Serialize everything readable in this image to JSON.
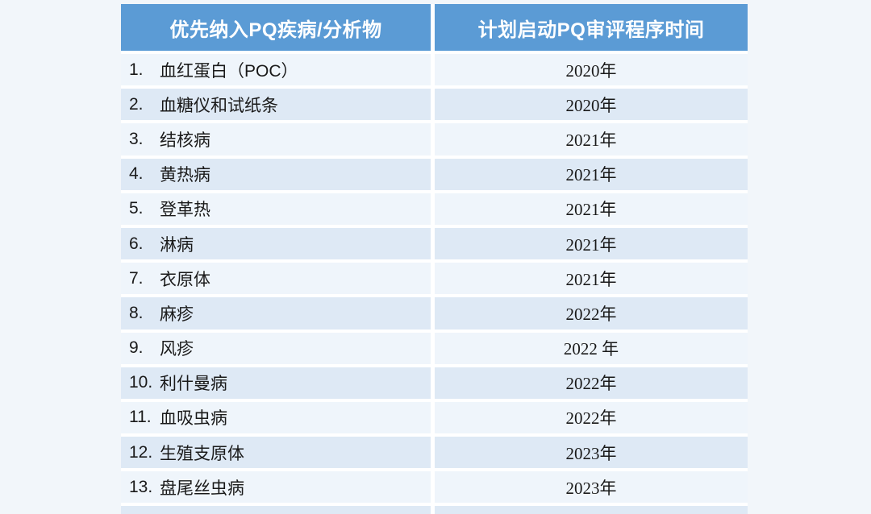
{
  "theme": {
    "page_bg": "#F2F6FA",
    "gap_color": "#FFFFFF",
    "header_bg": "#5B9BD5",
    "header_text": "#FFFFFF",
    "row_light": "#EFF5FB",
    "row_dark": "#DEE9F5",
    "body_text": "#1A1A1A"
  },
  "table": {
    "header": {
      "col1": "优先纳入PQ疾病/分析物",
      "col2": "计划启动PQ审评程序时间"
    },
    "rows": [
      {
        "num": "1.",
        "name": "血红蛋白（POC）",
        "year": "2020年"
      },
      {
        "num": "2.",
        "name": "血糖仪和试纸条",
        "year": "2020年"
      },
      {
        "num": "3.",
        "name": "结核病",
        "year": "2021年"
      },
      {
        "num": "4.",
        "name": "黄热病",
        "year": "2021年"
      },
      {
        "num": "5.",
        "name": "登革热",
        "year": "2021年"
      },
      {
        "num": "6.",
        "name": "淋病",
        "year": "2021年"
      },
      {
        "num": "7.",
        "name": "衣原体",
        "year": "2021年"
      },
      {
        "num": "8.",
        "name": "麻疹",
        "year": "2022年"
      },
      {
        "num": "9.",
        "name": "风疹",
        "year": "2022 年"
      },
      {
        "num": "10.",
        "name": "利什曼病",
        "year": "2022年"
      },
      {
        "num": "11.",
        "name": "血吸虫病",
        "year": "2022年"
      },
      {
        "num": "12.",
        "name": "生殖支原体",
        "year": "2023年"
      },
      {
        "num": "13.",
        "name": "盘尾丝虫病",
        "year": "2023年"
      }
    ]
  }
}
